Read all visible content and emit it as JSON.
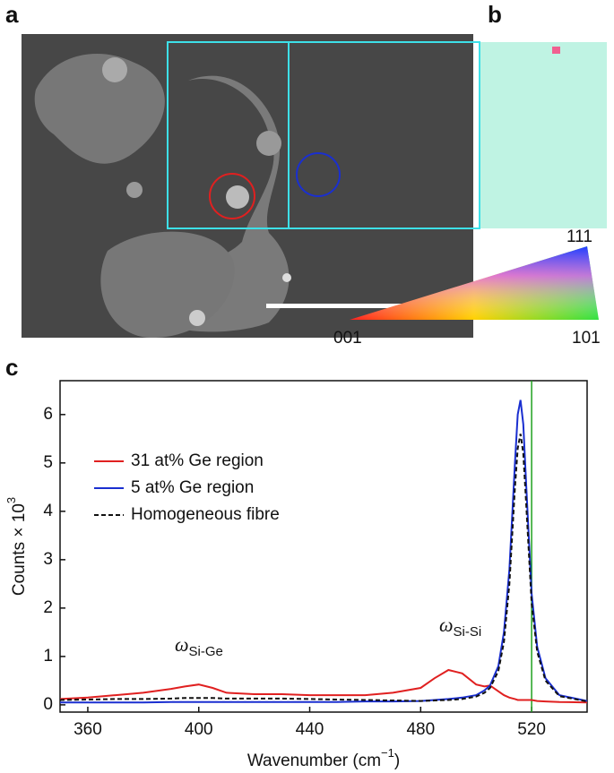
{
  "panel_labels": [
    "a",
    "b",
    "c"
  ],
  "color_key_labels": [
    "111",
    "001",
    "101"
  ],
  "chart_data": {
    "type": "line",
    "xlabel": {
      "text": "Wavenumber (cm",
      "sup": "−1",
      "end": ")"
    },
    "ylabel": {
      "text": "Counts × 10",
      "sup": "3"
    },
    "x": [
      350,
      360,
      370,
      380,
      390,
      395,
      400,
      405,
      410,
      420,
      430,
      440,
      450,
      460,
      470,
      480,
      485,
      490,
      495,
      500,
      503,
      505,
      508,
      510,
      512,
      514,
      515,
      516,
      517,
      518,
      520,
      522,
      525,
      530,
      540
    ],
    "series": [
      {
        "name": "31 at% Ge region",
        "color": "#e02020",
        "dash": false,
        "values": [
          0.12,
          0.15,
          0.2,
          0.25,
          0.33,
          0.38,
          0.42,
          0.35,
          0.25,
          0.22,
          0.22,
          0.2,
          0.2,
          0.2,
          0.25,
          0.35,
          0.55,
          0.72,
          0.65,
          0.42,
          0.38,
          0.4,
          0.28,
          0.2,
          0.15,
          0.12,
          0.1,
          0.1,
          0.1,
          0.1,
          0.1,
          0.08,
          0.07,
          0.06,
          0.05
        ]
      },
      {
        "name": "5 at% Ge region",
        "color": "#1a2fd0",
        "dash": false,
        "values": [
          0.05,
          0.05,
          0.05,
          0.05,
          0.06,
          0.06,
          0.06,
          0.06,
          0.06,
          0.06,
          0.06,
          0.06,
          0.06,
          0.07,
          0.07,
          0.08,
          0.1,
          0.12,
          0.15,
          0.2,
          0.3,
          0.4,
          0.8,
          1.5,
          2.8,
          5.0,
          6.0,
          6.3,
          5.8,
          4.6,
          2.3,
          1.2,
          0.55,
          0.2,
          0.08
        ]
      },
      {
        "name": "Homogeneous fibre",
        "color": "#111111",
        "dash": true,
        "values": [
          0.1,
          0.11,
          0.12,
          0.12,
          0.13,
          0.14,
          0.14,
          0.14,
          0.13,
          0.13,
          0.13,
          0.12,
          0.11,
          0.1,
          0.09,
          0.08,
          0.09,
          0.1,
          0.12,
          0.17,
          0.25,
          0.35,
          0.7,
          1.3,
          2.5,
          4.5,
          5.3,
          5.6,
          5.2,
          4.2,
          2.1,
          1.1,
          0.5,
          0.18,
          0.07
        ]
      }
    ],
    "reference_line": {
      "value": 520,
      "color": "#20a020"
    },
    "annotations": [
      {
        "text": "ω",
        "sub": "Si-Ge"
      },
      {
        "text": "ω",
        "sub": "Si-Si"
      }
    ],
    "xlim": [
      350,
      540
    ],
    "ylim": [
      -0.15,
      6.7
    ],
    "xticks": [
      360,
      400,
      440,
      480,
      520
    ],
    "yticks": [
      0,
      1,
      2,
      3,
      4,
      5,
      6
    ],
    "legend": "upper-left"
  }
}
